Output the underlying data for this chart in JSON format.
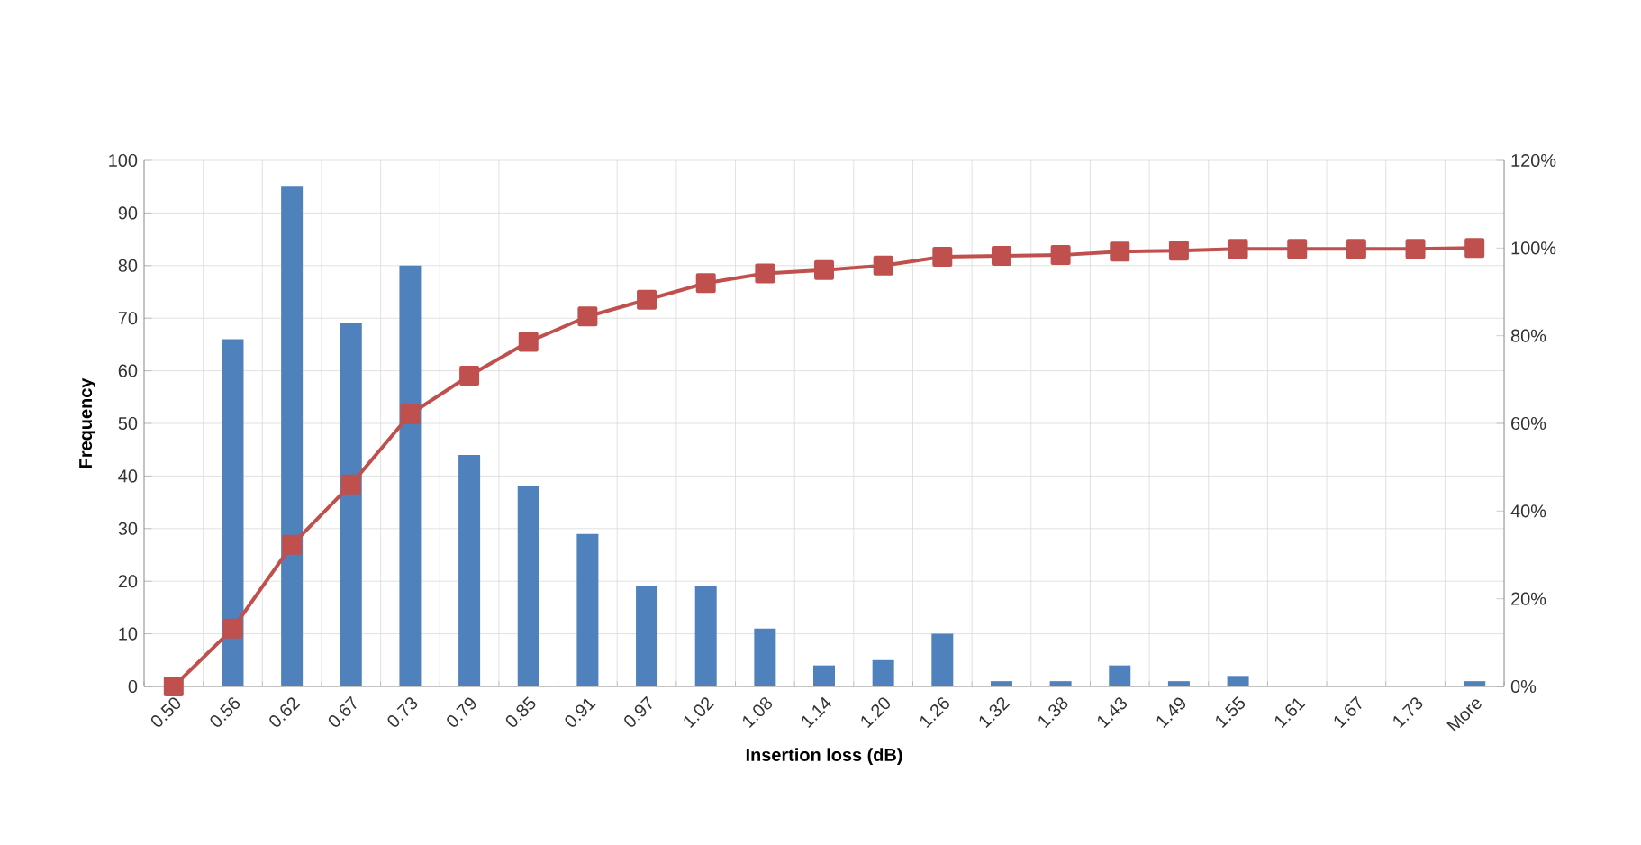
{
  "chart_data": {
    "type": "bar",
    "xlabel": "Insertion loss (dB)",
    "ylabel": "Frequency",
    "categories": [
      "0.50",
      "0.56",
      "0.62",
      "0.67",
      "0.73",
      "0.79",
      "0.85",
      "0.91",
      "0.97",
      "1.02",
      "1.08",
      "1.14",
      "1.20",
      "1.26",
      "1.32",
      "1.38",
      "1.43",
      "1.49",
      "1.55",
      "1.61",
      "1.67",
      "1.73",
      "More"
    ],
    "series": [
      {
        "color": "#4f81bd",
        "values": [
          0,
          66,
          95,
          69,
          80,
          44,
          38,
          29,
          19,
          19,
          11,
          4,
          5,
          10,
          1,
          1,
          4,
          1,
          2,
          0,
          0,
          0,
          1
        ]
      },
      {
        "type": "line",
        "axis": "y2",
        "color": "#c0504d",
        "marker": "square",
        "line_style": "solid",
        "values": [
          0,
          13.2,
          32.3,
          46.1,
          62.1,
          70.9,
          78.6,
          84.4,
          88.2,
          92.0,
          94.2,
          95.0,
          96.0,
          98.0,
          98.2,
          98.4,
          99.2,
          99.4,
          99.8,
          99.8,
          99.8,
          99.8,
          100
        ]
      }
    ],
    "ylim": [
      0,
      100
    ],
    "yticks": [
      0,
      10,
      20,
      30,
      40,
      50,
      60,
      70,
      80,
      90,
      100
    ],
    "y2lim": [
      0,
      120
    ],
    "y2ticks": [
      {
        "value": 0,
        "label": "0%"
      },
      {
        "value": 20,
        "label": "20%"
      },
      {
        "value": 40,
        "label": "40%"
      },
      {
        "value": 60,
        "label": "60%"
      },
      {
        "value": 80,
        "label": "80%"
      },
      {
        "value": 100,
        "label": "100%"
      },
      {
        "value": 120,
        "label": "120%"
      }
    ],
    "grid": true
  }
}
